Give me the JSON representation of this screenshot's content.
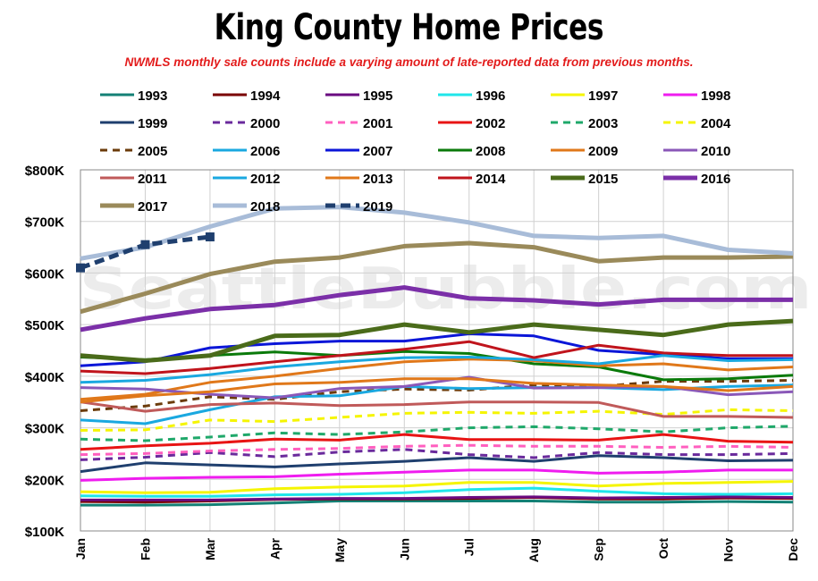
{
  "chart_data": {
    "type": "line",
    "title": "King County Home Prices",
    "subtitle": "NWMLS monthly sale counts include a varying amount of late-reported  data from previous months.",
    "watermark": "SeattleBubble.com",
    "categories": [
      "Jan",
      "Feb",
      "Mar",
      "Apr",
      "May",
      "Jun",
      "Jul",
      "Aug",
      "Sep",
      "Oct",
      "Nov",
      "Dec"
    ],
    "ylim": [
      100000,
      800000
    ],
    "y_ticks": [
      {
        "value": 100000,
        "label": "$100K"
      },
      {
        "value": 200000,
        "label": "$200K"
      },
      {
        "value": 300000,
        "label": "$300K"
      },
      {
        "value": 400000,
        "label": "$400K"
      },
      {
        "value": 500000,
        "label": "$500K"
      },
      {
        "value": 600000,
        "label": "$600K"
      },
      {
        "value": 700000,
        "label": "$700K"
      },
      {
        "value": 800000,
        "label": "$800K"
      }
    ],
    "grid": true,
    "legend_position": "top",
    "series": [
      {
        "name": "1993",
        "color": "#138075",
        "width": 3,
        "dash": "",
        "values": [
          150000,
          150000,
          151000,
          154000,
          158000,
          158000,
          158000,
          158000,
          156000,
          156000,
          157000,
          156000
        ]
      },
      {
        "name": "1994",
        "color": "#7a0000",
        "width": 3,
        "dash": "",
        "values": [
          157000,
          156000,
          158000,
          161000,
          162000,
          162000,
          163000,
          165000,
          162000,
          162000,
          164000,
          163000
        ]
      },
      {
        "name": "1995",
        "color": "#6a0b80",
        "width": 3,
        "dash": "",
        "values": [
          160000,
          160000,
          160000,
          162000,
          163000,
          163000,
          165000,
          166000,
          164000,
          165000,
          166000,
          165000
        ]
      },
      {
        "name": "1996",
        "color": "#1fe6ea",
        "width": 3,
        "dash": "",
        "values": [
          168000,
          167000,
          167000,
          170000,
          171000,
          174000,
          180000,
          183000,
          177000,
          172000,
          171000,
          172000
        ]
      },
      {
        "name": "1997",
        "color": "#f5f500",
        "width": 3,
        "dash": "",
        "values": [
          176000,
          174000,
          175000,
          182000,
          185000,
          187000,
          194000,
          194000,
          187000,
          192000,
          194000,
          196000
        ]
      },
      {
        "name": "1998",
        "color": "#ef1cef",
        "width": 3,
        "dash": "",
        "values": [
          198000,
          202000,
          204000,
          205000,
          210000,
          214000,
          218000,
          218000,
          212000,
          214000,
          218000,
          218000
        ]
      },
      {
        "name": "1999",
        "color": "#1f3f6e",
        "width": 3,
        "dash": "",
        "values": [
          215000,
          232000,
          228000,
          224000,
          230000,
          235000,
          242000,
          235000,
          246000,
          242000,
          236000,
          237000
        ]
      },
      {
        "name": "2000",
        "color": "#6a2a9c",
        "width": 3,
        "dash": "8,6",
        "values": [
          238000,
          243000,
          252000,
          244000,
          253000,
          258000,
          248000,
          242000,
          252000,
          248000,
          248000,
          250000
        ]
      },
      {
        "name": "2001",
        "color": "#ff5fbf",
        "width": 3,
        "dash": "8,6",
        "values": [
          248000,
          250000,
          255000,
          258000,
          260000,
          264000,
          266000,
          264000,
          264000,
          262000,
          264000,
          262000
        ]
      },
      {
        "name": "2002",
        "color": "#e81414",
        "width": 3,
        "dash": "",
        "values": [
          258000,
          265000,
          270000,
          278000,
          276000,
          287000,
          277000,
          277000,
          276000,
          287000,
          274000,
          272000
        ]
      },
      {
        "name": "2003",
        "color": "#1fa86a",
        "width": 3,
        "dash": "8,6",
        "values": [
          278000,
          275000,
          282000,
          290000,
          287000,
          292000,
          300000,
          302000,
          298000,
          292000,
          300000,
          303000
        ]
      },
      {
        "name": "2004",
        "color": "#f5f500",
        "width": 3,
        "dash": "8,6",
        "values": [
          295000,
          296000,
          315000,
          312000,
          320000,
          328000,
          330000,
          328000,
          332000,
          326000,
          335000,
          333000
        ]
      },
      {
        "name": "2005",
        "color": "#6b3b0a",
        "width": 3,
        "dash": "8,6",
        "values": [
          333000,
          342000,
          360000,
          355000,
          370000,
          375000,
          373000,
          383000,
          380000,
          390000,
          390000,
          392000
        ]
      },
      {
        "name": "2006",
        "color": "#1aa8e0",
        "width": 3,
        "dash": "",
        "values": [
          315000,
          308000,
          335000,
          360000,
          362000,
          380000,
          376000,
          378000,
          378000,
          374000,
          380000,
          383000
        ]
      },
      {
        "name": "2007",
        "color": "#0b16d8",
        "width": 3,
        "dash": "",
        "values": [
          420000,
          428000,
          455000,
          463000,
          468000,
          468000,
          482000,
          478000,
          450000,
          442000,
          434000,
          434000
        ]
      },
      {
        "name": "2008",
        "color": "#0a7a0a",
        "width": 3,
        "dash": "",
        "values": [
          437000,
          432000,
          440000,
          447000,
          440000,
          448000,
          444000,
          424000,
          418000,
          393000,
          395000,
          402000
        ]
      },
      {
        "name": "2009",
        "color": "#e0781a",
        "width": 3,
        "dash": "",
        "values": [
          355000,
          365000,
          388000,
          400000,
          415000,
          428000,
          433000,
          430000,
          420000,
          424000,
          412000,
          418000
        ]
      },
      {
        "name": "2010",
        "color": "#8a58b8",
        "width": 3,
        "dash": "",
        "values": [
          378000,
          375000,
          365000,
          358000,
          376000,
          380000,
          398000,
          377000,
          378000,
          380000,
          364000,
          370000
        ]
      },
      {
        "name": "2011",
        "color": "#c05a5a",
        "width": 3,
        "dash": "",
        "values": [
          350000,
          332000,
          345000,
          348000,
          343000,
          345000,
          350000,
          350000,
          349000,
          322000,
          322000,
          320000
        ]
      },
      {
        "name": "2012",
        "color": "#1aa8e0",
        "width": 3,
        "dash": "",
        "values": [
          388000,
          392000,
          403000,
          418000,
          428000,
          436000,
          437000,
          432000,
          424000,
          440000,
          430000,
          432000
        ]
      },
      {
        "name": "2013",
        "color": "#e0781a",
        "width": 3,
        "dash": "",
        "values": [
          350000,
          362000,
          370000,
          385000,
          388000,
          395000,
          395000,
          386000,
          383000,
          380000,
          372000,
          380000
        ]
      },
      {
        "name": "2014",
        "color": "#c0141c",
        "width": 3,
        "dash": "",
        "values": [
          410000,
          405000,
          415000,
          428000,
          440000,
          452000,
          467000,
          436000,
          460000,
          445000,
          440000,
          440000
        ]
      },
      {
        "name": "2015",
        "color": "#4a6b1a",
        "width": 5,
        "dash": "",
        "values": [
          440000,
          430000,
          440000,
          478000,
          480000,
          500000,
          485000,
          500000,
          490000,
          480000,
          500000,
          507000
        ]
      },
      {
        "name": "2016",
        "color": "#7b2fa8",
        "width": 5,
        "dash": "",
        "values": [
          490000,
          512000,
          530000,
          538000,
          557000,
          572000,
          551000,
          547000,
          539000,
          548000,
          548000,
          548000
        ]
      },
      {
        "name": "2017",
        "color": "#9a8a5a",
        "width": 5,
        "dash": "",
        "values": [
          525000,
          560000,
          598000,
          622000,
          630000,
          652000,
          658000,
          650000,
          623000,
          630000,
          630000,
          632000
        ]
      },
      {
        "name": "2018",
        "color": "#a8bcd8",
        "width": 5,
        "dash": "",
        "values": [
          628000,
          650000,
          690000,
          725000,
          728000,
          717000,
          698000,
          672000,
          668000,
          672000,
          645000,
          638000
        ]
      },
      {
        "name": "2019",
        "color": "#1f3f6e",
        "width": 5,
        "dash": "11,6",
        "marker": "square",
        "values": [
          610000,
          655000,
          670000,
          null,
          null,
          null,
          null,
          null,
          null,
          null,
          null,
          null
        ]
      }
    ]
  }
}
